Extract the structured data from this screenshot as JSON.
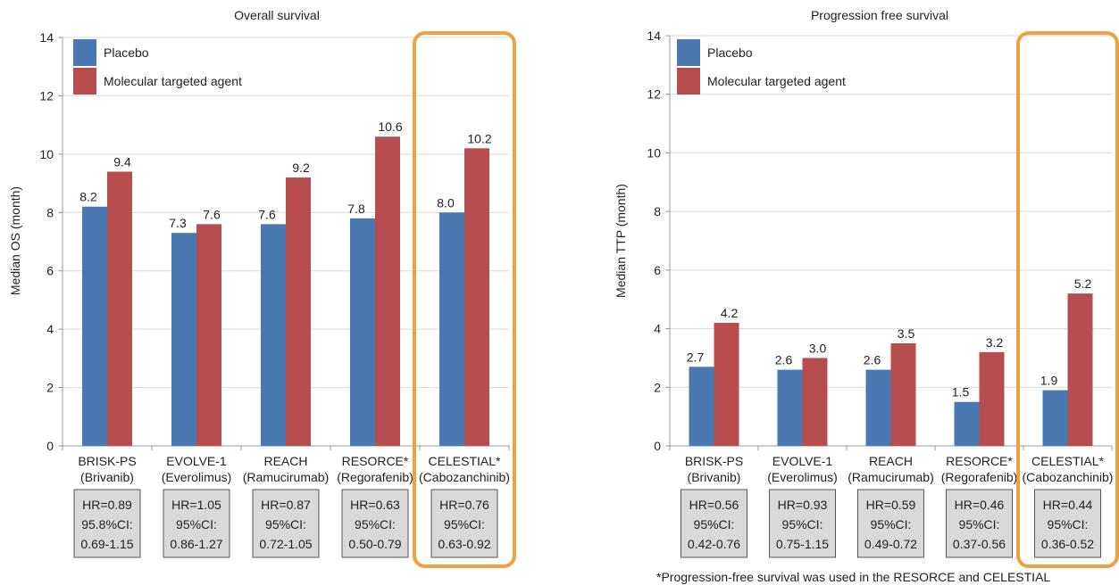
{
  "colors": {
    "placebo": "#4a78b0",
    "agent": "#b84d50",
    "highlight": "#f0a040",
    "hr_box": "#d9d9d9",
    "grid": "#d9d9d9"
  },
  "chart_data": [
    {
      "type": "bar",
      "title": "Overall survival",
      "ylabel": "Median OS (month)",
      "ylim": [
        0,
        14
      ],
      "yticks": [
        0,
        2,
        4,
        6,
        8,
        10,
        12,
        14
      ],
      "legend": [
        "Placebo",
        "Molecular targeted agent"
      ],
      "legend_position": "top-left",
      "categories": [
        [
          "BRISK-PS",
          "(Brivanib)"
        ],
        [
          "EVOLVE-1",
          "(Everolimus)"
        ],
        [
          "REACH",
          "(Ramucirumab)"
        ],
        [
          "RESORCE*",
          "(Regorafenib)"
        ],
        [
          "CELESTIAL*",
          "(Cabozanchinib)"
        ]
      ],
      "series": [
        {
          "name": "Placebo",
          "values": [
            8.2,
            7.3,
            7.6,
            7.8,
            8.0
          ],
          "labels": [
            "8.2",
            "7.3",
            "7.6",
            "7.8",
            "8.0"
          ]
        },
        {
          "name": "Molecular targeted agent",
          "values": [
            9.4,
            7.6,
            9.2,
            10.6,
            10.2
          ],
          "labels": [
            "9.4",
            "7.6",
            "9.2",
            "10.6",
            "10.2"
          ]
        }
      ],
      "hr_boxes": [
        [
          "HR=0.89",
          "95.8%CI:",
          "0.69-1.15"
        ],
        [
          "HR=1.05",
          "95%CI:",
          "0.86-1.27"
        ],
        [
          "HR=0.87",
          "95%CI:",
          "0.72-1.05"
        ],
        [
          "HR=0.63",
          "95%CI:",
          "0.50-0.79"
        ],
        [
          "HR=0.76",
          "95%CI:",
          "0.63-0.92"
        ]
      ],
      "highlight_index": 4
    },
    {
      "type": "bar",
      "title": "Progression free survival",
      "ylabel": "Median TTP (month)",
      "ylim": [
        0,
        14
      ],
      "yticks": [
        0,
        2,
        4,
        6,
        8,
        10,
        12,
        14
      ],
      "legend": [
        "Placebo",
        "Molecular targeted agent"
      ],
      "legend_position": "top-left",
      "categories": [
        [
          "BRISK-PS",
          "(Brivanib)"
        ],
        [
          "EVOLVE-1",
          "(Everolimus)"
        ],
        [
          "REACH",
          "(Ramucirumab)"
        ],
        [
          "RESORCE*",
          "(Regorafenib)"
        ],
        [
          "CELESTIAL*",
          "(Cabozanchinib)"
        ]
      ],
      "series": [
        {
          "name": "Placebo",
          "values": [
            2.7,
            2.6,
            2.6,
            1.5,
            1.9
          ],
          "labels": [
            "2.7",
            "2.6",
            "2.6",
            "1.5",
            "1.9"
          ]
        },
        {
          "name": "Molecular targeted agent",
          "values": [
            4.2,
            3.0,
            3.5,
            3.2,
            5.2
          ],
          "labels": [
            "4.2",
            "3.0",
            "3.5",
            "3.2",
            "5.2"
          ]
        }
      ],
      "hr_boxes": [
        [
          "HR=0.56",
          "95%CI:",
          "0.42-0.76"
        ],
        [
          "HR=0.93",
          "95%CI:",
          "0.75-1.15"
        ],
        [
          "HR=0.59",
          "95%CI:",
          "0.49-0.72"
        ],
        [
          "HR=0.46",
          "95%CI:",
          "0.37-0.56"
        ],
        [
          "HR=0.44",
          "95%CI:",
          "0.36-0.52"
        ]
      ],
      "highlight_index": 4
    }
  ],
  "footnote": "*Progression-free survival was used in the RESORCE and CELESTIAL"
}
